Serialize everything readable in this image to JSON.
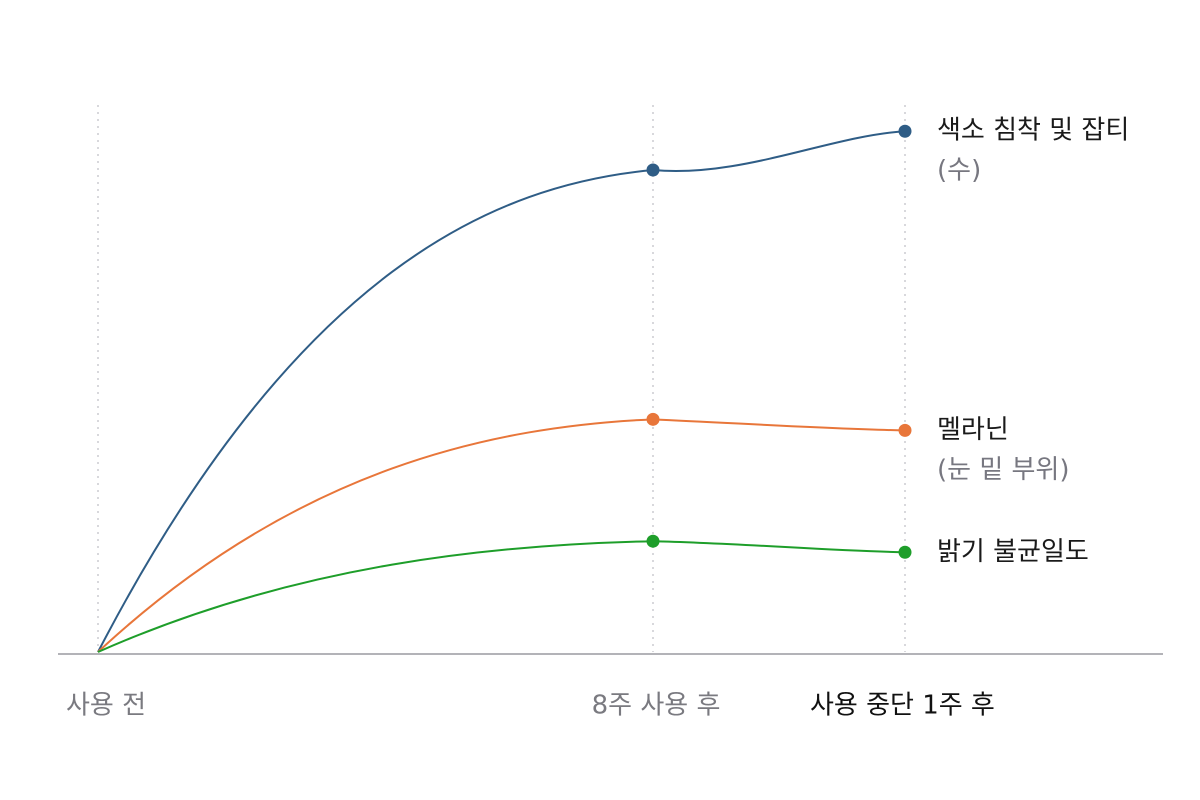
{
  "chart_data": {
    "type": "line",
    "title": "",
    "xlabel": "",
    "ylabel": "",
    "categories": [
      "사용 전",
      "8주 사용 후",
      "사용 중단 1주 후"
    ],
    "ylim": [
      0,
      100
    ],
    "grid": "vertical dotted lines at each category",
    "series": [
      {
        "name": "색소 침착 및 잡티",
        "name_sub": "(수)",
        "color": "#2f5d86",
        "values": [
          0,
          87,
          94
        ]
      },
      {
        "name": "멜라닌",
        "name_sub": "(눈 밑 부위)",
        "color": "#e8763a",
        "values": [
          0,
          42,
          40
        ]
      },
      {
        "name": "밝기 불균일도",
        "name_sub": "",
        "color": "#1e9e2a",
        "values": [
          0,
          20,
          18
        ]
      }
    ],
    "colors": {
      "axis": "#9a9aa0",
      "grid": "#cfcfd4",
      "tick_text_muted": "#7a7a80",
      "tick_text_emphasis": "#111111",
      "label_text": "#1a1a1a",
      "label_sub_text": "#777780"
    }
  }
}
